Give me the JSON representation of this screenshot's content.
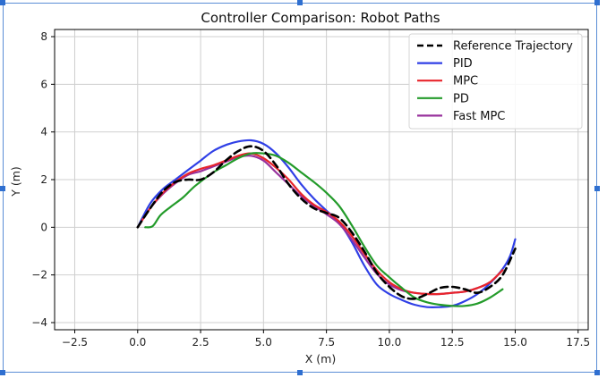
{
  "chart_data": {
    "type": "line",
    "title": "Controller Comparison: Robot Paths",
    "xlabel": "X (m)",
    "ylabel": "Y (m)",
    "xlim": [
      -3.3,
      17.9
    ],
    "ylim": [
      -4.3,
      8.3
    ],
    "xticks": [
      -2.5,
      0.0,
      2.5,
      5.0,
      7.5,
      10.0,
      12.5,
      15.0,
      17.5
    ],
    "xtick_labels": [
      "−2.5",
      "0.0",
      "2.5",
      "5.0",
      "7.5",
      "10.0",
      "12.5",
      "15.0",
      "17.5"
    ],
    "yticks": [
      -4,
      -2,
      0,
      2,
      4,
      6,
      8
    ],
    "ytick_labels": [
      "−4",
      "−2",
      "0",
      "2",
      "4",
      "6",
      "8"
    ],
    "grid": true,
    "legend_position": "top-right",
    "series": [
      {
        "name": "Reference Trajectory",
        "color": "#000000",
        "dash": "dashed",
        "points": [
          [
            0.0,
            0.0
          ],
          [
            0.5,
            0.8
          ],
          [
            1.0,
            1.5
          ],
          [
            1.5,
            1.9
          ],
          [
            2.0,
            2.0
          ],
          [
            2.5,
            2.0
          ],
          [
            3.0,
            2.3
          ],
          [
            3.5,
            2.8
          ],
          [
            4.0,
            3.2
          ],
          [
            4.5,
            3.4
          ],
          [
            5.0,
            3.2
          ],
          [
            5.5,
            2.6
          ],
          [
            6.0,
            1.8
          ],
          [
            6.5,
            1.2
          ],
          [
            7.0,
            0.8
          ],
          [
            7.5,
            0.6
          ],
          [
            8.0,
            0.4
          ],
          [
            8.5,
            -0.2
          ],
          [
            9.0,
            -1.0
          ],
          [
            9.5,
            -1.9
          ],
          [
            10.0,
            -2.5
          ],
          [
            10.5,
            -2.9
          ],
          [
            11.0,
            -3.0
          ],
          [
            11.5,
            -2.8
          ],
          [
            12.0,
            -2.55
          ],
          [
            12.5,
            -2.5
          ],
          [
            13.0,
            -2.6
          ],
          [
            13.5,
            -2.75
          ],
          [
            14.0,
            -2.5
          ],
          [
            14.5,
            -2.0
          ],
          [
            15.0,
            -0.9
          ]
        ]
      },
      {
        "name": "PID",
        "color": "#2f3fe6",
        "dash": "solid",
        "points": [
          [
            0.0,
            0.0
          ],
          [
            0.5,
            1.0
          ],
          [
            1.0,
            1.6
          ],
          [
            1.5,
            2.0
          ],
          [
            2.0,
            2.4
          ],
          [
            2.5,
            2.8
          ],
          [
            3.0,
            3.2
          ],
          [
            3.5,
            3.45
          ],
          [
            4.0,
            3.6
          ],
          [
            4.5,
            3.65
          ],
          [
            5.0,
            3.5
          ],
          [
            5.5,
            3.1
          ],
          [
            6.0,
            2.5
          ],
          [
            6.5,
            1.8
          ],
          [
            7.0,
            1.2
          ],
          [
            7.5,
            0.7
          ],
          [
            8.0,
            0.2
          ],
          [
            8.5,
            -0.6
          ],
          [
            9.0,
            -1.6
          ],
          [
            9.5,
            -2.4
          ],
          [
            10.0,
            -2.8
          ],
          [
            10.5,
            -3.05
          ],
          [
            11.0,
            -3.25
          ],
          [
            11.5,
            -3.35
          ],
          [
            12.0,
            -3.35
          ],
          [
            12.5,
            -3.3
          ],
          [
            13.0,
            -3.1
          ],
          [
            13.5,
            -2.8
          ],
          [
            14.0,
            -2.35
          ],
          [
            14.5,
            -1.75
          ],
          [
            14.8,
            -1.2
          ],
          [
            15.0,
            -0.5
          ]
        ]
      },
      {
        "name": "MPC",
        "color": "#e8242b",
        "dash": "solid",
        "points": [
          [
            0.0,
            0.0
          ],
          [
            0.5,
            0.8
          ],
          [
            1.0,
            1.45
          ],
          [
            1.5,
            1.9
          ],
          [
            2.0,
            2.25
          ],
          [
            2.5,
            2.45
          ],
          [
            3.0,
            2.6
          ],
          [
            3.5,
            2.8
          ],
          [
            4.0,
            3.0
          ],
          [
            4.5,
            3.1
          ],
          [
            5.0,
            2.9
          ],
          [
            5.5,
            2.5
          ],
          [
            6.0,
            2.0
          ],
          [
            6.5,
            1.4
          ],
          [
            7.0,
            0.95
          ],
          [
            7.5,
            0.65
          ],
          [
            8.0,
            0.25
          ],
          [
            8.5,
            -0.35
          ],
          [
            9.0,
            -1.1
          ],
          [
            9.5,
            -1.8
          ],
          [
            10.0,
            -2.3
          ],
          [
            10.5,
            -2.6
          ],
          [
            11.0,
            -2.75
          ],
          [
            11.5,
            -2.8
          ],
          [
            12.0,
            -2.8
          ],
          [
            12.5,
            -2.75
          ],
          [
            13.0,
            -2.7
          ],
          [
            13.5,
            -2.55
          ],
          [
            14.0,
            -2.3
          ],
          [
            14.5,
            -1.8
          ]
        ]
      },
      {
        "name": "PD",
        "color": "#239b2a",
        "dash": "solid",
        "points": [
          [
            0.3,
            0.0
          ],
          [
            0.6,
            0.05
          ],
          [
            0.9,
            0.5
          ],
          [
            1.3,
            0.85
          ],
          [
            1.8,
            1.25
          ],
          [
            2.3,
            1.75
          ],
          [
            3.0,
            2.3
          ],
          [
            3.5,
            2.6
          ],
          [
            4.0,
            2.9
          ],
          [
            4.5,
            3.1
          ],
          [
            5.0,
            3.1
          ],
          [
            5.5,
            3.0
          ],
          [
            6.0,
            2.7
          ],
          [
            6.5,
            2.3
          ],
          [
            7.0,
            1.9
          ],
          [
            7.5,
            1.45
          ],
          [
            8.0,
            0.9
          ],
          [
            8.5,
            0.1
          ],
          [
            9.0,
            -0.8
          ],
          [
            9.5,
            -1.6
          ],
          [
            10.0,
            -2.1
          ],
          [
            10.5,
            -2.55
          ],
          [
            11.0,
            -2.95
          ],
          [
            11.5,
            -3.15
          ],
          [
            12.0,
            -3.25
          ],
          [
            12.5,
            -3.3
          ],
          [
            13.0,
            -3.3
          ],
          [
            13.5,
            -3.2
          ],
          [
            14.0,
            -2.95
          ],
          [
            14.5,
            -2.6
          ]
        ]
      },
      {
        "name": "Fast MPC",
        "color": "#97309c",
        "dash": "solid",
        "points": [
          [
            0.0,
            0.0
          ],
          [
            0.5,
            0.8
          ],
          [
            1.0,
            1.4
          ],
          [
            1.5,
            1.85
          ],
          [
            2.0,
            2.2
          ],
          [
            2.5,
            2.35
          ],
          [
            3.0,
            2.55
          ],
          [
            3.5,
            2.75
          ],
          [
            4.0,
            2.95
          ],
          [
            4.5,
            3.0
          ],
          [
            5.0,
            2.8
          ],
          [
            5.5,
            2.3
          ],
          [
            6.0,
            1.8
          ],
          [
            6.5,
            1.3
          ],
          [
            7.0,
            0.9
          ],
          [
            7.5,
            0.55
          ],
          [
            8.0,
            0.15
          ],
          [
            8.5,
            -0.5
          ],
          [
            9.0,
            -1.25
          ],
          [
            9.5,
            -1.95
          ],
          [
            10.0,
            -2.4
          ],
          [
            10.5,
            -2.65
          ],
          [
            11.0,
            -2.75
          ],
          [
            11.5,
            -2.8
          ],
          [
            12.0,
            -2.8
          ],
          [
            12.5,
            -2.75
          ],
          [
            13.0,
            -2.7
          ],
          [
            13.5,
            -2.55
          ],
          [
            14.0,
            -2.3
          ],
          [
            14.5,
            -1.8
          ]
        ]
      }
    ]
  }
}
